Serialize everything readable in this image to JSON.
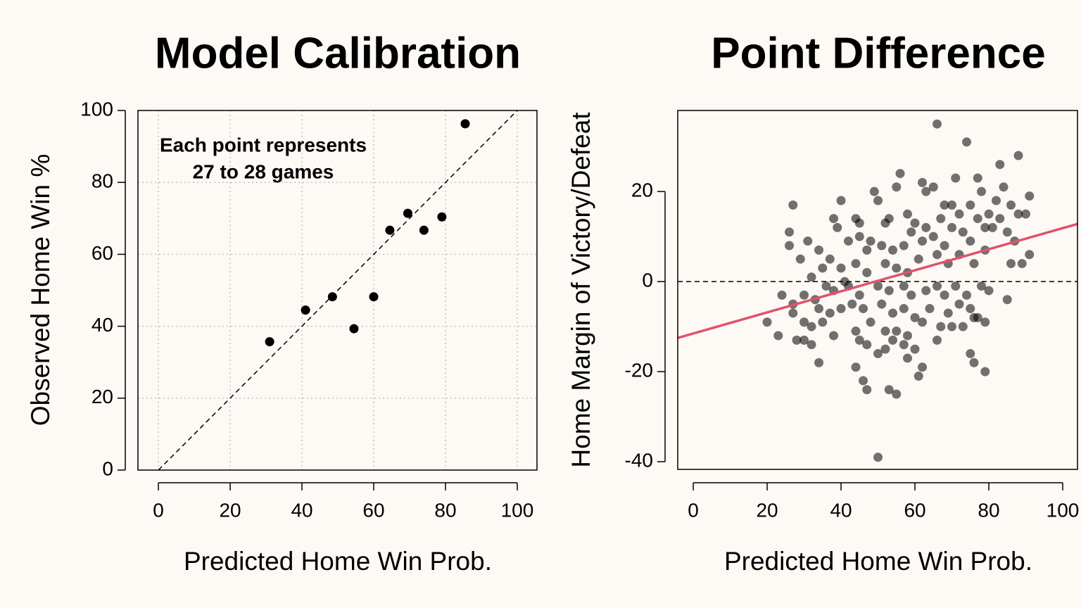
{
  "chart_data": [
    {
      "type": "scatter",
      "title": "Model Calibration",
      "x_label": "Predicted Home Win Prob.",
      "y_label": "Observed Home Win %",
      "annotation": [
        "Each point represents",
        "27 to 28 games"
      ],
      "xlim": [
        -5.7,
        105.5
      ],
      "ylim": [
        0,
        100
      ],
      "xticks": [
        0,
        20,
        40,
        60,
        80,
        100
      ],
      "yticks": [
        0,
        20,
        40,
        60,
        80,
        100
      ],
      "grid": true,
      "diagonal": true,
      "series": [
        {
          "color": "#000000",
          "x": [
            31,
            41,
            48.5,
            54.5,
            60,
            64.5,
            69.5,
            74,
            79,
            85.5
          ],
          "y": [
            35.7,
            44.5,
            48.2,
            39.3,
            48.2,
            66.7,
            71.4,
            66.7,
            70.4,
            96.3
          ]
        }
      ]
    },
    {
      "type": "scatter",
      "title": "Point Difference",
      "x_label": "Predicted Home Win Prob.",
      "y_label": "Home Margin of Victory/Defeat",
      "xlim": [
        -4.2,
        104
      ],
      "ylim": [
        -41.7,
        38
      ],
      "xticks": [
        0,
        20,
        40,
        60,
        80,
        100
      ],
      "yticks": [
        -40,
        -20,
        0,
        20
      ],
      "grid": false,
      "hline": 0,
      "trend_line": {
        "color": "#df536b",
        "x": [
          -4.2,
          104
        ],
        "y": [
          -12.5,
          12.8
        ]
      },
      "series": [
        {
          "color": "rgba(0,0,0,0.55)",
          "x": [
            66,
            74,
            88,
            83,
            56,
            71,
            77,
            62,
            65,
            55,
            63,
            78,
            49,
            84,
            91,
            27,
            40,
            50,
            70,
            68,
            75,
            82,
            86,
            44,
            58,
            38,
            26,
            26,
            39,
            45,
            52,
            53,
            60,
            63,
            67,
            72,
            77,
            80,
            83,
            88,
            90,
            31,
            29,
            34,
            37,
            42,
            45,
            47,
            48,
            51,
            54,
            57,
            59,
            62,
            65,
            68,
            70,
            73,
            75,
            79,
            81,
            85,
            87,
            89,
            86,
            91,
            79,
            76,
            72,
            69,
            66,
            61,
            58,
            55,
            52,
            47,
            44,
            40,
            35,
            32,
            38,
            42,
            45,
            50,
            53,
            57,
            59,
            63,
            66,
            68,
            71,
            74,
            78,
            80,
            85,
            24,
            27,
            27,
            33,
            34,
            37,
            40,
            43,
            46,
            51,
            54,
            57,
            60,
            64,
            69,
            72,
            75,
            77,
            79,
            20,
            30,
            32,
            35,
            38,
            44,
            48,
            52,
            55,
            58,
            62,
            67,
            70,
            73,
            76,
            23,
            28,
            30,
            32,
            34,
            45,
            47,
            50,
            52,
            54,
            57,
            60,
            62,
            58,
            66,
            61,
            75,
            76,
            79,
            44,
            46,
            47,
            53,
            55,
            50,
            30,
            36,
            41
          ],
          "y": [
            35,
            31,
            28,
            26,
            24,
            23,
            23,
            22,
            21,
            21,
            20,
            20,
            20,
            21,
            19,
            17,
            18,
            18,
            17,
            17,
            17,
            18,
            17,
            14,
            15,
            14,
            11,
            8,
            12,
            13,
            13,
            14,
            13,
            12,
            14,
            15,
            14,
            15,
            14,
            15,
            15,
            9,
            5,
            7,
            5,
            9,
            10,
            7,
            9,
            8,
            7,
            8,
            11,
            9,
            10,
            8,
            12,
            11,
            9,
            12,
            12,
            11,
            9,
            4,
            4,
            6,
            7,
            4,
            6,
            4,
            6,
            5,
            2,
            3,
            4,
            2,
            4,
            3,
            3,
            1,
            -2,
            -1,
            -3,
            -1,
            -2,
            -1,
            -3,
            -2,
            -1,
            -3,
            -1,
            -3,
            -1,
            -2,
            -4,
            -3,
            -5,
            -7,
            -4,
            -6,
            -7,
            -6,
            -5,
            -6,
            -5,
            -7,
            -6,
            -8,
            -6,
            -7,
            -5,
            -6,
            -8,
            -9,
            -9,
            -9,
            -10,
            -9,
            -12,
            -11,
            -9,
            -11,
            -11,
            -12,
            -9,
            -10,
            -10,
            -10,
            -8,
            -12,
            -13,
            -13,
            -14,
            -18,
            -13,
            -14,
            -16,
            -15,
            -13,
            -14,
            -15,
            -19,
            -17,
            -13,
            -21,
            -16,
            -18,
            -20,
            -19,
            -22,
            -24,
            -24,
            -25,
            -39,
            -3,
            -1,
            0
          ]
        }
      ]
    }
  ]
}
